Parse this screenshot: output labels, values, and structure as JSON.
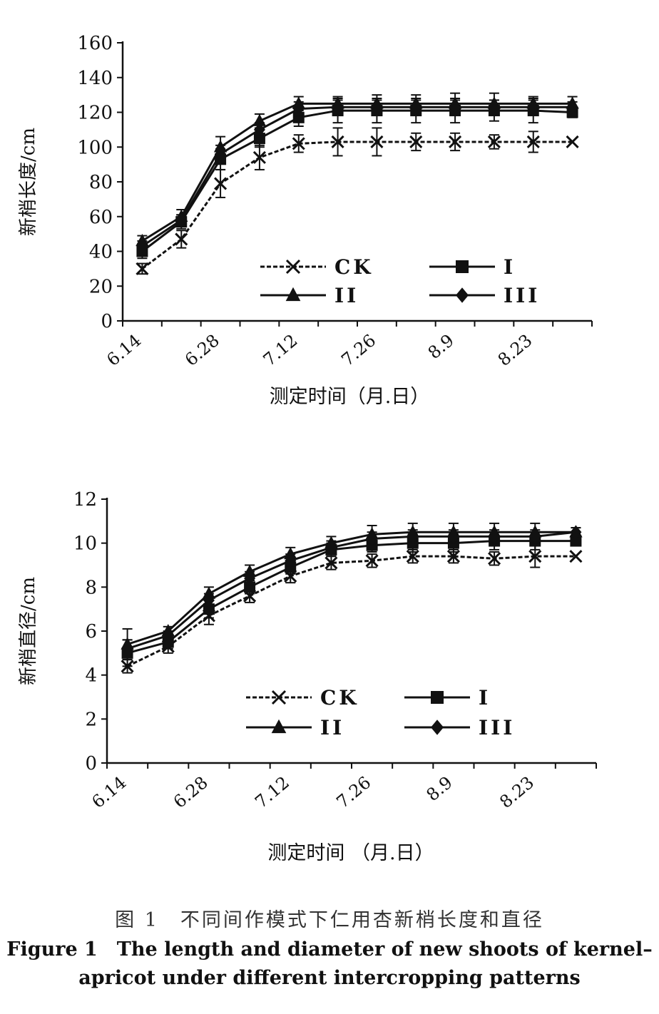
{
  "chart_data": [
    {
      "type": "line",
      "ylabel": "新梢长度/cm",
      "xlabel": "测定时间（月.日）",
      "ylim": [
        0,
        160
      ],
      "yticks": [
        0,
        20,
        40,
        60,
        80,
        100,
        120,
        140,
        160
      ],
      "x_tick_labels": [
        "6.14",
        "6.28",
        "7.12",
        "7.26",
        "8.9",
        "8.23"
      ],
      "x": [
        "6.14",
        "6.21",
        "6.28",
        "7.05",
        "7.12",
        "7.19",
        "7.26",
        "8.02",
        "8.09",
        "8.16",
        "8.23",
        "8.30"
      ],
      "legend_position": "inside-lower-right",
      "series": [
        {
          "name": "CK",
          "marker": "x",
          "line": "dashed",
          "values": [
            30,
            47,
            79,
            94,
            102,
            103,
            103,
            103,
            103,
            103,
            103,
            103
          ],
          "error": [
            3,
            5,
            8,
            7,
            5,
            8,
            8,
            5,
            5,
            4,
            6,
            0
          ]
        },
        {
          "name": "I",
          "marker": "square",
          "line": "solid",
          "values": [
            40,
            57,
            93,
            105,
            117,
            121,
            121,
            121,
            121,
            121,
            121,
            120
          ],
          "error": [
            4,
            4,
            6,
            5,
            5,
            7,
            7,
            7,
            7,
            6,
            7,
            3
          ]
        },
        {
          "name": "II",
          "marker": "triangle",
          "line": "solid",
          "values": [
            46,
            60,
            100,
            115,
            125,
            125,
            125,
            125,
            125,
            125,
            125,
            125
          ],
          "error": [
            3,
            4,
            6,
            4,
            4,
            4,
            5,
            5,
            6,
            6,
            4,
            4
          ]
        },
        {
          "name": "III",
          "marker": "diamond",
          "line": "solid",
          "values": [
            43,
            58,
            96,
            110,
            122,
            123,
            123,
            123,
            123,
            123,
            123,
            123
          ],
          "error": [
            3,
            3,
            5,
            4,
            4,
            4,
            4,
            4,
            4,
            4,
            4,
            3
          ]
        }
      ]
    },
    {
      "type": "line",
      "ylabel": "新梢直径/cm",
      "xlabel": "测定时间 （月.日）",
      "ylim": [
        0,
        12
      ],
      "yticks": [
        0,
        2,
        4,
        6,
        8,
        10,
        12
      ],
      "x_tick_labels": [
        "6.14",
        "6.28",
        "7.12",
        "7.26",
        "8.9",
        "8.23"
      ],
      "x": [
        "6.14",
        "6.21",
        "6.28",
        "7.05",
        "7.12",
        "7.19",
        "7.26",
        "8.02",
        "8.09",
        "8.16",
        "8.23",
        "8.30"
      ],
      "legend_position": "inside-lower-right",
      "series": [
        {
          "name": "CK",
          "marker": "x",
          "line": "dashed",
          "values": [
            4.4,
            5.3,
            6.7,
            7.6,
            8.5,
            9.1,
            9.2,
            9.4,
            9.4,
            9.3,
            9.4,
            9.4
          ],
          "error": [
            0.3,
            0.3,
            0.4,
            0.3,
            0.3,
            0.3,
            0.3,
            0.3,
            0.3,
            0.3,
            0.5,
            0.0
          ]
        },
        {
          "name": "I",
          "marker": "square",
          "line": "solid",
          "values": [
            5.0,
            5.5,
            7.0,
            8.0,
            8.9,
            9.7,
            9.9,
            10.0,
            10.0,
            10.1,
            10.1,
            10.1
          ],
          "error": [
            0.6,
            0.3,
            0.4,
            0.3,
            0.3,
            0.3,
            0.3,
            0.4,
            0.4,
            0.4,
            0.4,
            0.2
          ]
        },
        {
          "name": "II",
          "marker": "triangle",
          "line": "solid",
          "values": [
            5.4,
            6.0,
            7.7,
            8.7,
            9.5,
            10.0,
            10.4,
            10.5,
            10.5,
            10.5,
            10.5,
            10.5
          ],
          "error": [
            0.7,
            0.2,
            0.3,
            0.3,
            0.3,
            0.3,
            0.4,
            0.4,
            0.4,
            0.4,
            0.4,
            0.2
          ]
        },
        {
          "name": "III",
          "marker": "diamond",
          "line": "solid",
          "values": [
            5.2,
            5.8,
            7.4,
            8.4,
            9.2,
            9.8,
            10.2,
            10.3,
            10.3,
            10.3,
            10.3,
            10.5
          ],
          "error": [
            0.4,
            0.2,
            0.3,
            0.3,
            0.3,
            0.3,
            0.3,
            0.3,
            0.3,
            0.3,
            0.3,
            0.2
          ]
        }
      ]
    }
  ],
  "caption": {
    "cn": "图 1　不同间作模式下仁用杏新梢长度和直径",
    "en_line1": "Figure 1　The length and diameter of new shoots of kernel–",
    "en_line2": "apricot under different intercropping patterns"
  }
}
